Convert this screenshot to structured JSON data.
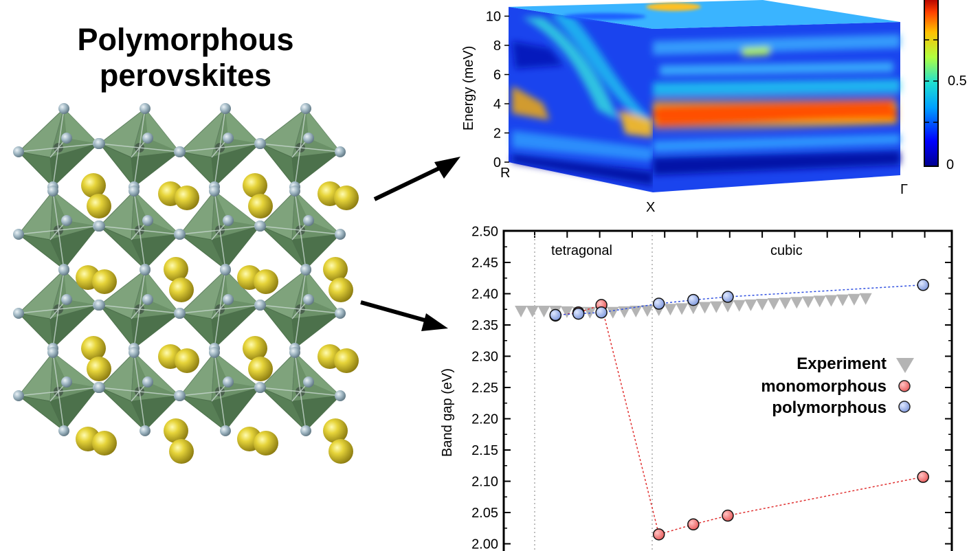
{
  "title": {
    "line1": "Polymorphous",
    "line2": "perovskites"
  },
  "dispersion_panel": {
    "ylabel": "Energy (meV)",
    "yticks": [
      "0",
      "2",
      "4",
      "6",
      "8",
      "10"
    ],
    "kpoints": [
      "R",
      "X",
      "Γ"
    ],
    "colorbar_ticks": [
      "0",
      "0.5"
    ]
  },
  "chart_data": [
    {
      "type": "scatter",
      "xlabel": "",
      "ylabel": "Band gap (eV)",
      "ylim": [
        2.0,
        2.5
      ],
      "yticks": [
        "2.00",
        "2.05",
        "2.10",
        "2.15",
        "2.20",
        "2.25",
        "2.30",
        "2.35",
        "2.40",
        "2.45",
        "2.50"
      ],
      "phase_labels": [
        "tetragonal",
        "cubic"
      ],
      "legend_position": "center-right",
      "series": [
        {
          "name": "Experiment",
          "color": "#b4b4b4",
          "marker": "triangle-down",
          "points": [
            [
              0,
              2.372
            ],
            [
              1,
              2.372
            ],
            [
              2,
              2.372
            ],
            [
              3,
              2.372
            ],
            [
              4,
              2.371
            ],
            [
              5,
              2.37
            ],
            [
              6,
              2.37
            ],
            [
              7,
              2.37
            ],
            [
              8,
              2.37
            ],
            [
              9,
              2.371
            ],
            [
              10,
              2.372
            ],
            [
              11,
              2.373
            ],
            [
              12,
              2.374
            ],
            [
              13,
              2.375
            ],
            [
              14,
              2.376
            ],
            [
              15,
              2.377
            ],
            [
              16,
              2.378
            ],
            [
              17,
              2.379
            ],
            [
              18,
              2.38
            ],
            [
              19,
              2.381
            ],
            [
              20,
              2.382
            ],
            [
              21,
              2.383
            ],
            [
              22,
              2.384
            ],
            [
              23,
              2.385
            ],
            [
              24,
              2.386
            ],
            [
              25,
              2.387
            ],
            [
              26,
              2.388
            ],
            [
              27,
              2.389
            ],
            [
              28,
              2.39
            ],
            [
              29,
              2.391
            ],
            [
              30,
              2.392
            ]
          ]
        },
        {
          "name": "monomorphous",
          "color": "#f07070",
          "marker": "circle",
          "points": [
            [
              3,
              2.365
            ],
            [
              5,
              2.37
            ],
            [
              7,
              2.382
            ],
            [
              12,
              2.015
            ],
            [
              15,
              2.031
            ],
            [
              18,
              2.045
            ],
            [
              35,
              2.107
            ]
          ]
        },
        {
          "name": "polymorphous",
          "color": "#8fa7e6",
          "marker": "circle",
          "points": [
            [
              3,
              2.366
            ],
            [
              5,
              2.368
            ],
            [
              7,
              2.37
            ],
            [
              12,
              2.384
            ],
            [
              15,
              2.39
            ],
            [
              18,
              2.395
            ],
            [
              35,
              2.414
            ]
          ]
        }
      ]
    }
  ]
}
